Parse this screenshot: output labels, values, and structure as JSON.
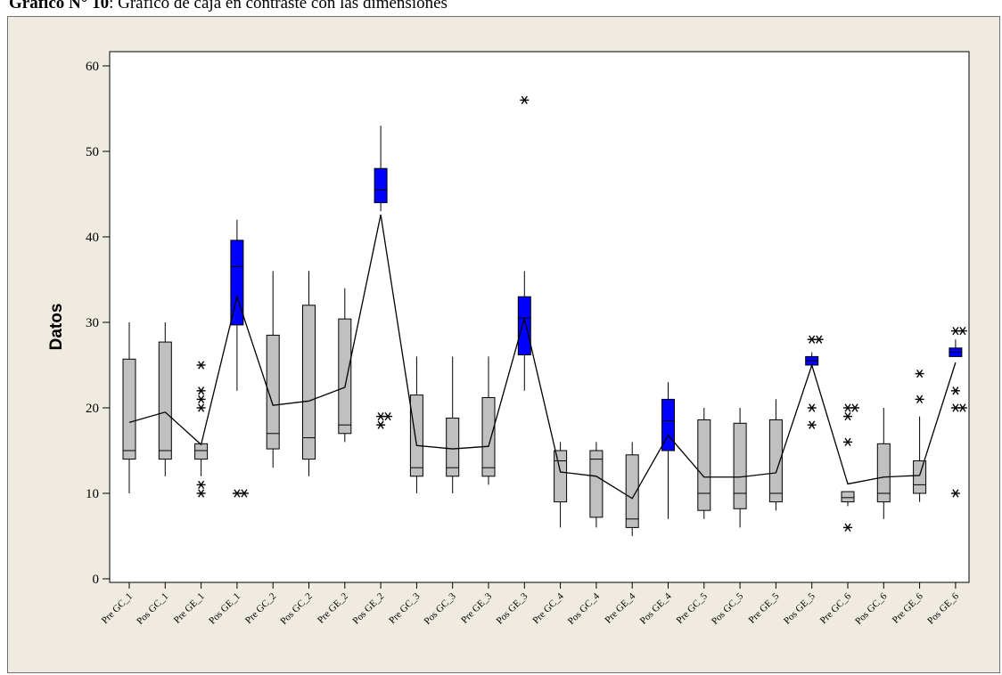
{
  "caption": {
    "prefix": "Gráfico N° 10",
    "text": ": Gráfico de caja en contraste con las dimensiones"
  },
  "chart_data": {
    "type": "boxplot",
    "ylabel": "Datos",
    "ylim": [
      -1,
      62
    ],
    "yticks": [
      0,
      10,
      20,
      30,
      40,
      50,
      60
    ],
    "colors": {
      "gray": "#c0c0c0",
      "blue": "#0000ff",
      "outline": "#000000",
      "background": "#efebe1"
    },
    "categories": [
      "Pre GC_1",
      "Pos GC_1",
      "Pre GE_1",
      "Pos GE_1",
      "Pre GC_2",
      "Pos GC_2",
      "Pre GE_2",
      "Pos GE_2",
      "Pre GC_3",
      "Pos GC_3",
      "Pre GE_3",
      "Pos GE_3",
      "Pre GC_4",
      "Pos GC_4",
      "Pre GE_4",
      "Pos GE_4",
      "Pre GC_5",
      "Pos GC_5",
      "Pre GE_5",
      "Pos GE_5",
      "Pre GC_6",
      "Pos GC_6",
      "Pre GE_6",
      "Pos GE_6"
    ],
    "boxes": [
      {
        "min": 10,
        "q1": 14,
        "median": 15,
        "q3": 25.7,
        "max": 30,
        "mean": 18.3,
        "outliers": [],
        "color": "gray"
      },
      {
        "min": 12,
        "q1": 14,
        "median": 15,
        "q3": 27.7,
        "max": 30,
        "mean": 19.5,
        "outliers": [],
        "color": "gray"
      },
      {
        "min": 12,
        "q1": 14,
        "median": 15,
        "q3": 15.8,
        "max": 15.8,
        "mean": 15.7,
        "outliers": [
          25,
          22,
          21,
          20,
          11,
          10
        ],
        "color": "gray"
      },
      {
        "min": 22,
        "q1": 29.7,
        "median": 36.5,
        "q3": 39.6,
        "max": 42,
        "mean": 33,
        "outliers": [
          10,
          10
        ],
        "color": "blue"
      },
      {
        "min": 13,
        "q1": 15.2,
        "median": 17,
        "q3": 28.5,
        "max": 36,
        "mean": 20.3,
        "outliers": [],
        "color": "gray"
      },
      {
        "min": 12,
        "q1": 14,
        "median": 16.5,
        "q3": 32,
        "max": 36,
        "mean": 20.8,
        "outliers": [],
        "color": "gray"
      },
      {
        "min": 16,
        "q1": 17,
        "median": 18,
        "q3": 30.4,
        "max": 34,
        "mean": 22.4,
        "outliers": [],
        "color": "gray"
      },
      {
        "min": 43,
        "q1": 44,
        "median": 45.5,
        "q3": 48,
        "max": 53,
        "mean": 42.6,
        "outliers": [
          19,
          19,
          18
        ],
        "color": "blue"
      },
      {
        "min": 10,
        "q1": 12,
        "median": 13,
        "q3": 21.5,
        "max": 26,
        "mean": 15.6,
        "outliers": [],
        "color": "gray"
      },
      {
        "min": 10,
        "q1": 12,
        "median": 13,
        "q3": 18.8,
        "max": 26,
        "mean": 15.2,
        "outliers": [],
        "color": "gray"
      },
      {
        "min": 11,
        "q1": 12,
        "median": 13,
        "q3": 21.2,
        "max": 26,
        "mean": 15.5,
        "outliers": [],
        "color": "gray"
      },
      {
        "min": 22,
        "q1": 26.2,
        "median": 30.5,
        "q3": 33,
        "max": 36,
        "mean": 30.5,
        "outliers": [
          56
        ],
        "color": "blue"
      },
      {
        "min": 6,
        "q1": 9,
        "median": 13.8,
        "q3": 15,
        "max": 16,
        "mean": 12.5,
        "outliers": [],
        "color": "gray"
      },
      {
        "min": 6,
        "q1": 7.2,
        "median": 14,
        "q3": 15,
        "max": 16,
        "mean": 12,
        "outliers": [],
        "color": "gray"
      },
      {
        "min": 5,
        "q1": 6,
        "median": 7,
        "q3": 14.5,
        "max": 16,
        "mean": 9.4,
        "outliers": [],
        "color": "gray"
      },
      {
        "min": 7,
        "q1": 15,
        "median": 18.5,
        "q3": 21,
        "max": 23,
        "mean": 16.8,
        "outliers": [],
        "color": "blue"
      },
      {
        "min": 7,
        "q1": 8,
        "median": 10,
        "q3": 18.6,
        "max": 20,
        "mean": 11.9,
        "outliers": [],
        "color": "gray"
      },
      {
        "min": 6,
        "q1": 8.2,
        "median": 10,
        "q3": 18.2,
        "max": 20,
        "mean": 11.9,
        "outliers": [],
        "color": "gray"
      },
      {
        "min": 8,
        "q1": 9,
        "median": 10,
        "q3": 18.6,
        "max": 21,
        "mean": 12.4,
        "outliers": [],
        "color": "gray"
      },
      {
        "min": 24.8,
        "q1": 25,
        "median": 25.5,
        "q3": 26,
        "max": 26.5,
        "mean": 25,
        "outliers": [
          28,
          28,
          20,
          18
        ],
        "color": "blue"
      },
      {
        "min": 8.5,
        "q1": 9,
        "median": 9.5,
        "q3": 10.2,
        "max": 10.2,
        "mean": 11.1,
        "outliers": [
          20,
          20,
          19,
          16,
          6
        ],
        "color": "gray"
      },
      {
        "min": 7,
        "q1": 9,
        "median": 10,
        "q3": 15.8,
        "max": 20,
        "mean": 11.9,
        "outliers": [],
        "color": "gray"
      },
      {
        "min": 9,
        "q1": 10,
        "median": 11,
        "q3": 13.8,
        "max": 19,
        "mean": 12.1,
        "outliers": [
          24,
          21
        ],
        "color": "gray"
      },
      {
        "min": 26,
        "q1": 26,
        "median": 26.5,
        "q3": 27,
        "max": 28,
        "mean": 25.3,
        "outliers": [
          29,
          29,
          22,
          20,
          20,
          10
        ],
        "color": "blue"
      }
    ]
  }
}
